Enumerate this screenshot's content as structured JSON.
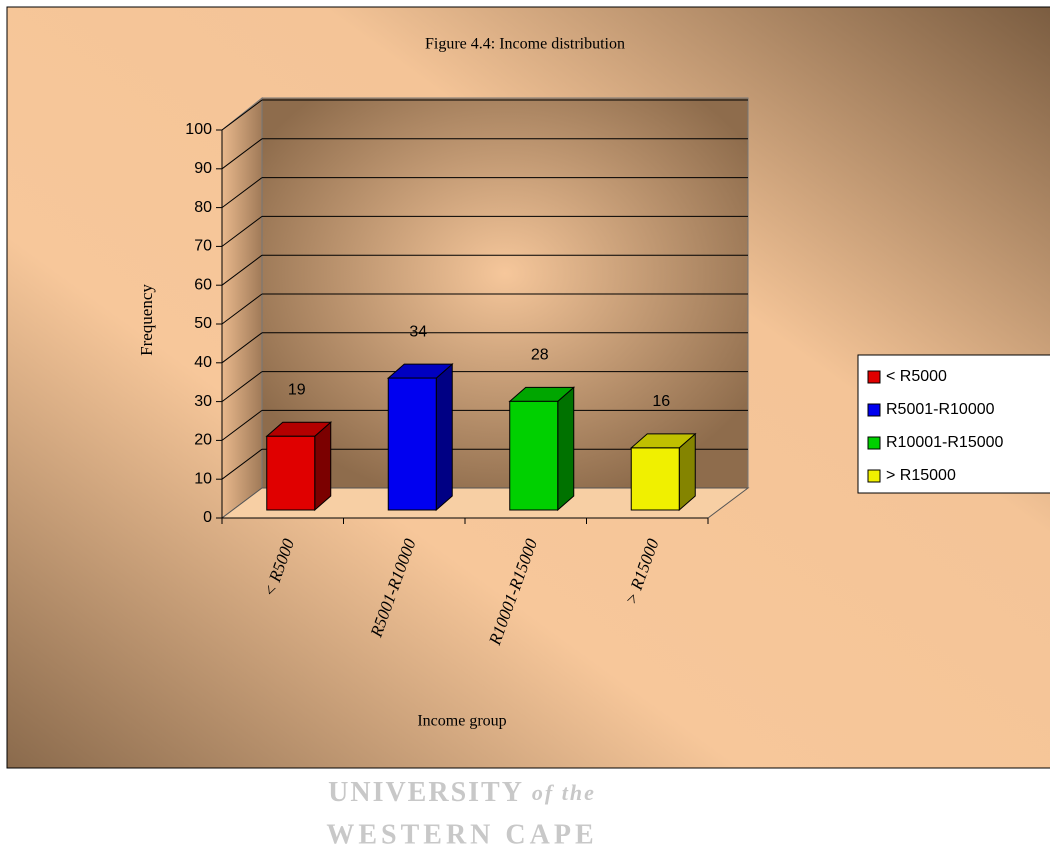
{
  "chart_data": {
    "type": "bar3d",
    "title": "Figure 4.4: Income distribution",
    "y_label": "Frequency",
    "x_label": "Income group",
    "categories": [
      "< R5000",
      "R5001-R10000",
      "R10001-R15000",
      "> R15000"
    ],
    "values": [
      19,
      34,
      28,
      16
    ],
    "colors": [
      "#e00000",
      "#0000f0",
      "#00d000",
      "#f0f000"
    ],
    "ylim": [
      0,
      100
    ],
    "yticks": [
      0,
      10,
      20,
      30,
      40,
      50,
      60,
      70,
      80,
      90,
      100
    ],
    "grid": true,
    "legend": "right"
  },
  "watermark": [
    "UNIVERSITY",
    "of the",
    "WESTERN CAPE"
  ]
}
